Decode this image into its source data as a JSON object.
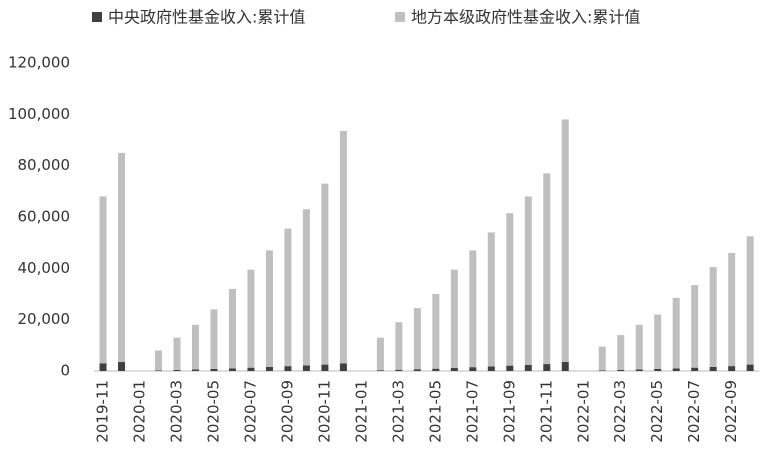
{
  "chart_data": {
    "type": "stacked_bar",
    "categories": [
      "2019-11",
      null,
      "2020-01",
      null,
      "2020-03",
      null,
      "2020-05",
      null,
      "2020-07",
      null,
      "2020-09",
      null,
      "2020-11",
      null,
      "2021-01",
      null,
      "2021-03",
      null,
      "2021-05",
      null,
      "2021-07",
      null,
      "2021-09",
      null,
      "2021-11",
      null,
      "2022-01",
      null,
      "2022-03",
      null,
      "2022-05",
      null,
      "2022-07",
      null,
      "2022-09",
      null
    ],
    "series": [
      {
        "name": "中央政府性基金收入:累计值",
        "color": "#404040",
        "values": [
          3000,
          3500,
          null,
          200,
          400,
          600,
          800,
          1000,
          1300,
          1600,
          1900,
          2200,
          2500,
          3000,
          null,
          300,
          500,
          700,
          900,
          1200,
          1500,
          1800,
          2100,
          2400,
          2700,
          3500,
          null,
          200,
          400,
          600,
          800,
          1000,
          1300,
          1600,
          1900,
          2500
        ]
      },
      {
        "name": "地方本级政府性基金收入:累计值",
        "color": "#bfbfbf",
        "values": [
          65000,
          81500,
          null,
          7800,
          12600,
          17400,
          23200,
          31000,
          38200,
          45400,
          53600,
          60800,
          70500,
          90500,
          null,
          12700,
          18500,
          23800,
          29100,
          38300,
          45500,
          52200,
          59400,
          65600,
          74300,
          94500,
          null,
          9300,
          13600,
          17400,
          21200,
          27500,
          32200,
          38900,
          44100,
          50000
        ]
      }
    ],
    "ylim": [
      0,
      120000
    ],
    "yticks": [
      0,
      {
        "value": 20000,
        "label": "20,000"
      },
      {
        "value": 40000,
        "label": "40,000"
      },
      {
        "value": 60000,
        "label": "60,000"
      },
      {
        "value": 80000,
        "label": "80,000"
      },
      {
        "value": 100000,
        "label": "100,000"
      },
      {
        "value": 120000,
        "label": "120,000"
      }
    ],
    "grid": false
  }
}
